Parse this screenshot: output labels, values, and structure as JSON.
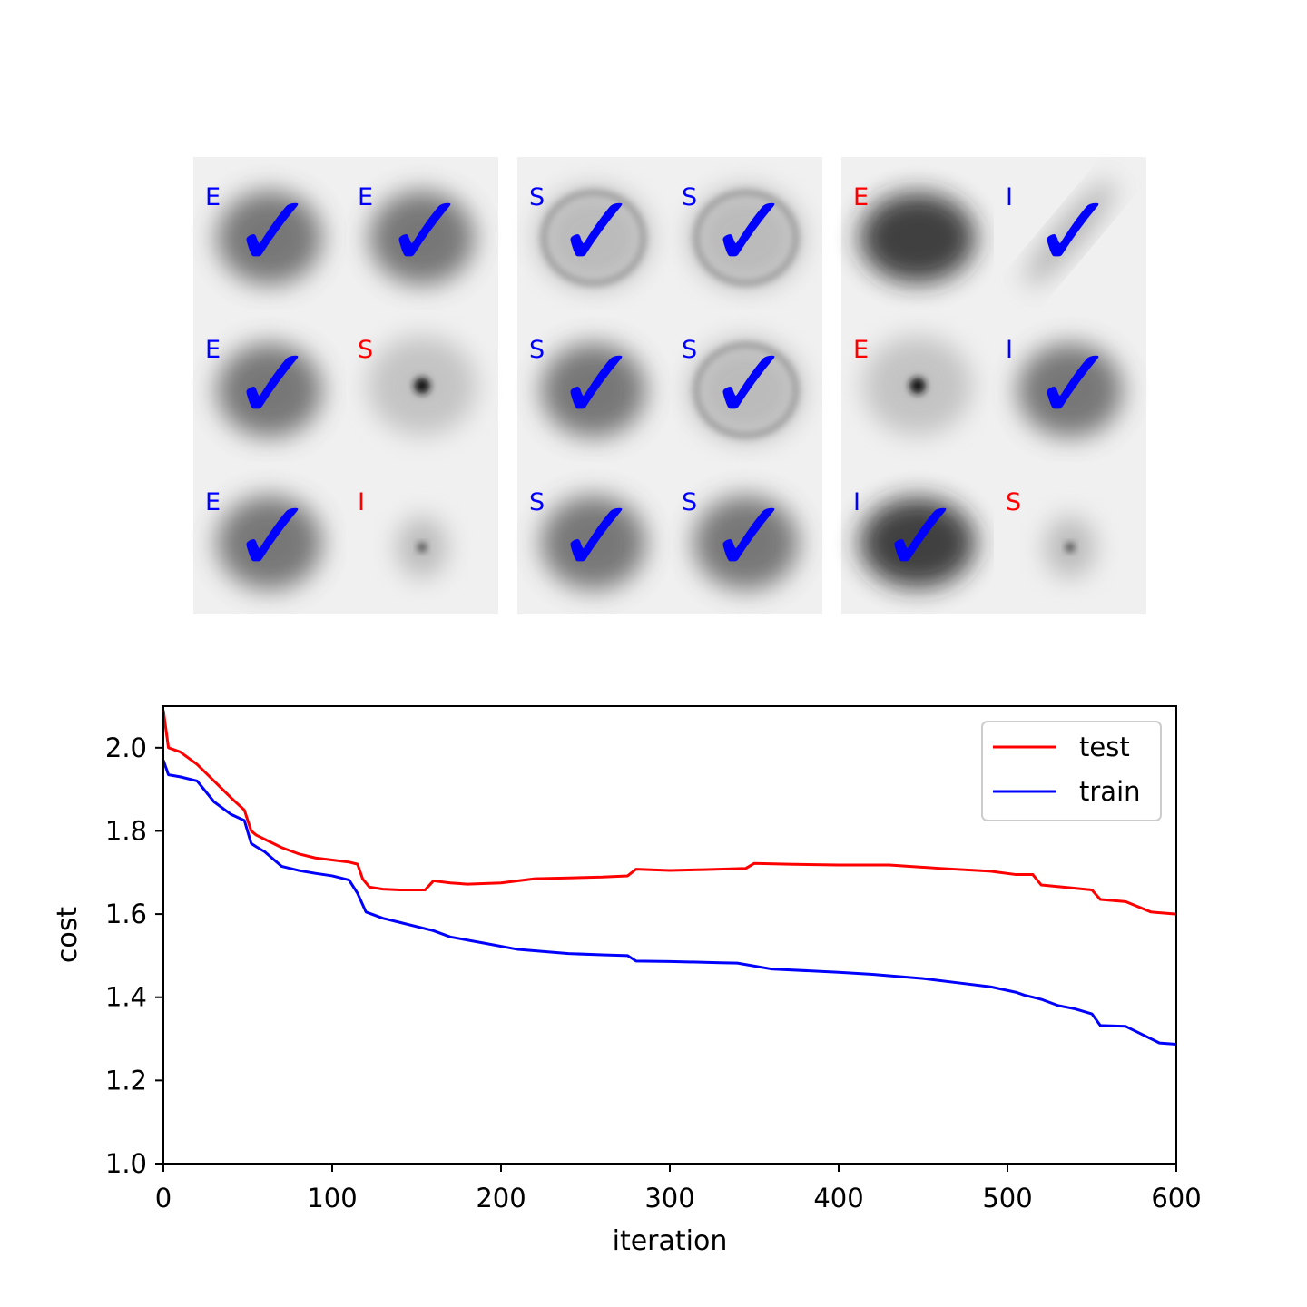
{
  "galaxy_panels": [
    {
      "cells": [
        {
          "label": "E",
          "label_color": "#0000ff",
          "checked": true,
          "blob": "diffuse"
        },
        {
          "label": "E",
          "label_color": "#0000ff",
          "checked": true,
          "blob": "diffuse"
        },
        {
          "label": "E",
          "label_color": "#0000ff",
          "checked": true,
          "blob": "diffuse"
        },
        {
          "label": "S",
          "label_color": "#ff0000",
          "checked": false,
          "blob": "core"
        },
        {
          "label": "E",
          "label_color": "#0000ff",
          "checked": true,
          "blob": "diffuse"
        },
        {
          "label": "I",
          "label_color": "#ff0000",
          "checked": false,
          "blob": "faint"
        }
      ]
    },
    {
      "cells": [
        {
          "label": "S",
          "label_color": "#0000ff",
          "checked": true,
          "blob": "ring"
        },
        {
          "label": "S",
          "label_color": "#0000ff",
          "checked": true,
          "blob": "ring"
        },
        {
          "label": "S",
          "label_color": "#0000ff",
          "checked": true,
          "blob": "diffuse"
        },
        {
          "label": "S",
          "label_color": "#0000ff",
          "checked": true,
          "blob": "ring"
        },
        {
          "label": "S",
          "label_color": "#0000ff",
          "checked": true,
          "blob": "diffuse"
        },
        {
          "label": "S",
          "label_color": "#0000ff",
          "checked": true,
          "blob": "diffuse"
        }
      ]
    },
    {
      "cells": [
        {
          "label": "E",
          "label_color": "#ff0000",
          "checked": false,
          "blob": "dark"
        },
        {
          "label": "I",
          "label_color": "#0000ff",
          "checked": true,
          "blob": "streak"
        },
        {
          "label": "E",
          "label_color": "#ff0000",
          "checked": false,
          "blob": "core"
        },
        {
          "label": "I",
          "label_color": "#0000ff",
          "checked": true,
          "blob": "diffuse"
        },
        {
          "label": "I",
          "label_color": "#0000ff",
          "checked": true,
          "blob": "dark"
        },
        {
          "label": "S",
          "label_color": "#ff0000",
          "checked": false,
          "blob": "faint"
        }
      ]
    }
  ],
  "checkmark_glyph": "✓",
  "colors": {
    "correct": "#0000ff",
    "wrong": "#ff0000",
    "axis": "#000000"
  },
  "chart_data": {
    "type": "line",
    "xlabel": "iteration",
    "ylabel": "cost",
    "xlim": [
      0,
      600
    ],
    "ylim": [
      1.0,
      2.1
    ],
    "xticks": [
      0,
      100,
      200,
      300,
      400,
      500,
      600
    ],
    "xtick_labels": [
      "0",
      "100",
      "200",
      "300",
      "400",
      "500",
      "600"
    ],
    "yticks": [
      1.0,
      1.2,
      1.4,
      1.6,
      1.8,
      2.0
    ],
    "ytick_labels": [
      "1.0",
      "1.2",
      "1.4",
      "1.6",
      "1.8",
      "2.0"
    ],
    "grid": false,
    "legend_position": "top-right",
    "series": [
      {
        "name": "test",
        "color": "#ff0000",
        "x": [
          0,
          3,
          10,
          20,
          30,
          40,
          48,
          52,
          55,
          60,
          70,
          80,
          90,
          100,
          110,
          115,
          118,
          122,
          130,
          140,
          155,
          160,
          170,
          180,
          200,
          220,
          240,
          260,
          275,
          280,
          300,
          320,
          345,
          350,
          370,
          400,
          430,
          460,
          490,
          505,
          515,
          520,
          540,
          550,
          555,
          570,
          585,
          600
        ],
        "y": [
          2.09,
          2.0,
          1.99,
          1.96,
          1.92,
          1.88,
          1.85,
          1.8,
          1.79,
          1.78,
          1.76,
          1.745,
          1.735,
          1.73,
          1.725,
          1.72,
          1.685,
          1.665,
          1.66,
          1.658,
          1.658,
          1.68,
          1.675,
          1.672,
          1.675,
          1.685,
          1.687,
          1.689,
          1.692,
          1.708,
          1.705,
          1.707,
          1.71,
          1.722,
          1.72,
          1.718,
          1.718,
          1.71,
          1.703,
          1.695,
          1.695,
          1.67,
          1.662,
          1.658,
          1.635,
          1.63,
          1.605,
          1.6
        ]
      },
      {
        "name": "train",
        "color": "#0000ff",
        "x": [
          0,
          3,
          10,
          20,
          30,
          40,
          48,
          52,
          55,
          60,
          70,
          80,
          90,
          100,
          110,
          115,
          120,
          130,
          140,
          160,
          170,
          190,
          210,
          240,
          260,
          275,
          280,
          300,
          330,
          340,
          360,
          400,
          420,
          450,
          470,
          490,
          505,
          510,
          520,
          530,
          540,
          550,
          555,
          570,
          580,
          590,
          600
        ],
        "y": [
          1.97,
          1.935,
          1.93,
          1.92,
          1.87,
          1.84,
          1.825,
          1.77,
          1.762,
          1.75,
          1.715,
          1.705,
          1.698,
          1.692,
          1.682,
          1.65,
          1.605,
          1.59,
          1.58,
          1.56,
          1.545,
          1.53,
          1.515,
          1.505,
          1.502,
          1.5,
          1.487,
          1.486,
          1.483,
          1.482,
          1.468,
          1.46,
          1.455,
          1.445,
          1.435,
          1.425,
          1.412,
          1.405,
          1.395,
          1.38,
          1.372,
          1.36,
          1.332,
          1.33,
          1.31,
          1.29,
          1.287
        ]
      }
    ]
  }
}
